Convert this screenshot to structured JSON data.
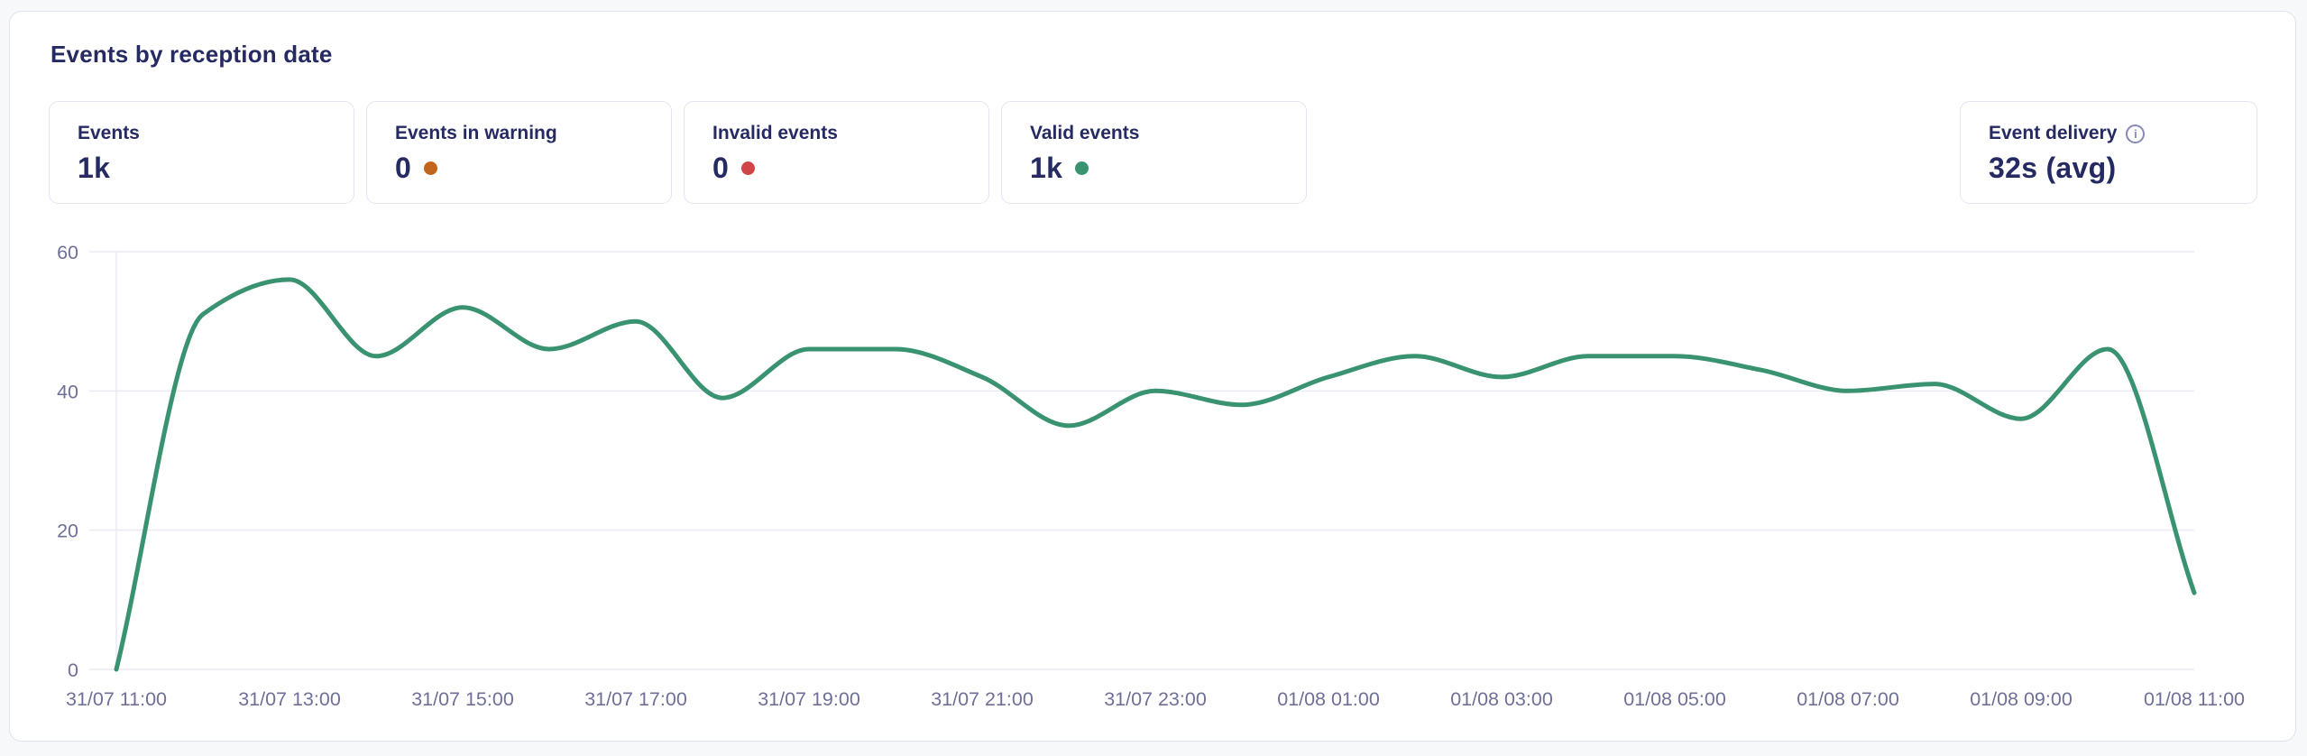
{
  "panel": {
    "title": "Events by reception date"
  },
  "stats": [
    {
      "label": "Events",
      "value": "1k",
      "dot_color": null
    },
    {
      "label": "Events in warning",
      "value": "0",
      "dot_color": "#c2661e"
    },
    {
      "label": "Invalid events",
      "value": "0",
      "dot_color": "#d04646"
    },
    {
      "label": "Valid events",
      "value": "1k",
      "dot_color": "#3a9370"
    }
  ],
  "delivery": {
    "label": "Event delivery",
    "value": "32s (avg)",
    "info_glyph": "i"
  },
  "chart_data": {
    "type": "line",
    "title": "Events by reception date",
    "x_start": "31/07 11:00",
    "x_interval_hours": 1,
    "x_tick_labels": [
      "31/07 11:00",
      "31/07 13:00",
      "31/07 15:00",
      "31/07 17:00",
      "31/07 19:00",
      "31/07 21:00",
      "31/07 23:00",
      "01/08 01:00",
      "01/08 03:00",
      "01/08 05:00",
      "01/08 07:00",
      "01/08 09:00",
      "01/08 11:00"
    ],
    "y_ticks": [
      0,
      20,
      40,
      60
    ],
    "ylim": [
      0,
      60
    ],
    "grid": "horizontal",
    "legend": "none",
    "smooth": true,
    "series": [
      {
        "name": "Events",
        "color": "#3a9370",
        "values": [
          0,
          51,
          56,
          45,
          52,
          46,
          50,
          39,
          46,
          46,
          42,
          35,
          40,
          38,
          42,
          45,
          42,
          45,
          45,
          43,
          40,
          41,
          36,
          46,
          11
        ]
      }
    ],
    "axis_label_color": "#6e7099",
    "gridline_color": "#e9ebf3"
  }
}
